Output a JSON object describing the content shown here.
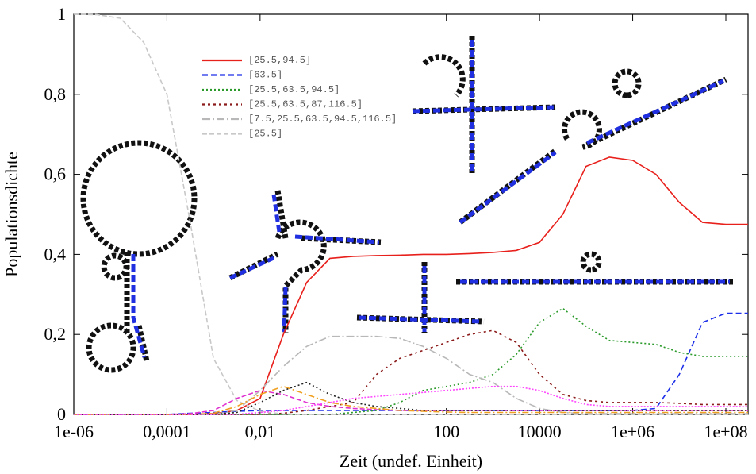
{
  "chart_data": {
    "type": "line",
    "x_label": "Zeit (undef. Einheit)",
    "y_label": "Populationsdichte",
    "x_log": true,
    "x": [
      1e-06,
      3.16e-06,
      1e-05,
      3.16e-05,
      0.0001,
      0.000316,
      0.001,
      0.00316,
      0.01,
      0.0316,
      0.1,
      0.316,
      1,
      3.16,
      10,
      31.6,
      100,
      316,
      1000,
      3160,
      10000,
      31600,
      100000,
      316000,
      1000000,
      3160000,
      10000000,
      31600000,
      100000000,
      300000000
    ],
    "xlim": [
      1e-06,
      300000000
    ],
    "xticks": [
      {
        "value": 1e-06,
        "label": "1e-06"
      },
      {
        "value": 0.0001,
        "label": "0,0001"
      },
      {
        "value": 0.01,
        "label": "0,01"
      },
      100,
      10000,
      {
        "value": 1000000,
        "label": "1e+06"
      },
      {
        "value": 100000000,
        "label": "1e+08"
      }
    ],
    "ylim": [
      0,
      1
    ],
    "yticks": [
      0,
      {
        "value": 0.2,
        "label": "0,2"
      },
      {
        "value": 0.4,
        "label": "0,4"
      },
      {
        "value": 0.6,
        "label": "0,6"
      },
      {
        "value": 0.8,
        "label": "0,8"
      },
      1
    ],
    "legend_position": "upper left",
    "series": [
      {
        "name": "[25.5,94.5]",
        "color": "#e8201c",
        "dash": "none",
        "values": [
          0,
          0,
          0,
          0,
          0,
          0,
          0.002,
          0.01,
          0.04,
          0.2,
          0.33,
          0.39,
          0.395,
          0.397,
          0.398,
          0.4,
          0.4,
          0.402,
          0.405,
          0.41,
          0.43,
          0.5,
          0.62,
          0.643,
          0.635,
          0.6,
          0.53,
          0.48,
          0.475,
          0.475
        ]
      },
      {
        "name": "[63.5]",
        "color": "#1c2ee8",
        "dash": "7,4",
        "values": [
          0,
          0,
          0,
          0,
          0,
          0.003,
          0.005,
          0.008,
          0.01,
          0.01,
          0.01,
          0.01,
          0.01,
          0.01,
          0.01,
          0.01,
          0.01,
          0.01,
          0.01,
          0.01,
          0.01,
          0.01,
          0.01,
          0.01,
          0.01,
          0.015,
          0.1,
          0.23,
          0.253,
          0.253
        ]
      },
      {
        "name": "[25.5,63.5,94.5]",
        "color": "#2a9a2a",
        "dash": "2,3",
        "values": [
          0,
          0,
          0,
          0,
          0,
          0,
          0,
          0,
          0,
          0,
          0,
          0,
          0.005,
          0.01,
          0.03,
          0.06,
          0.07,
          0.08,
          0.1,
          0.15,
          0.23,
          0.265,
          0.22,
          0.185,
          0.18,
          0.175,
          0.155,
          0.145,
          0.145,
          0.145
        ]
      },
      {
        "name": "[25.5,63.5,87,116.5]",
        "color": "#8b1a1a",
        "dash": "3,4",
        "values": [
          0,
          0,
          0,
          0,
          0,
          0,
          0,
          0,
          0,
          0.003,
          0.01,
          0.02,
          0.03,
          0.1,
          0.14,
          0.16,
          0.18,
          0.2,
          0.21,
          0.18,
          0.1,
          0.05,
          0.035,
          0.03,
          0.03,
          0.03,
          0.028,
          0.025,
          0.025,
          0.025
        ]
      },
      {
        "name": "[7.5,25.5,63.5,94.5,116.5]",
        "color": "#b8b8b8",
        "dash": "10,3,2,3",
        "values": [
          0,
          0,
          0,
          0,
          0,
          0,
          0,
          0.01,
          0.06,
          0.12,
          0.17,
          0.195,
          0.195,
          0.195,
          0.19,
          0.17,
          0.14,
          0.1,
          0.08,
          0.04,
          0.015,
          0.005,
          0.002,
          0.002,
          0.002,
          0.002,
          0.002,
          0.002,
          0.002,
          0.002
        ]
      },
      {
        "name": "[25.5]",
        "color": "#c8c8c8",
        "dash": "6,3",
        "values": [
          1,
          0.999,
          0.99,
          0.93,
          0.8,
          0.48,
          0.14,
          0.035,
          0.008,
          0.001,
          0,
          0,
          0,
          0,
          0,
          0,
          0,
          0,
          0,
          0,
          0,
          0,
          0,
          0,
          0,
          0,
          0,
          0,
          0,
          0
        ]
      },
      {
        "color": "#e030d0",
        "dash": "6,3",
        "values": [
          0,
          0,
          0,
          0,
          0,
          0.002,
          0.01,
          0.04,
          0.06,
          0.05,
          0.03,
          0.02,
          0.015,
          0.012,
          0.01,
          0.01,
          0.01,
          0.01,
          0.01,
          0.01,
          0.01,
          0.01,
          0.01,
          0.01,
          0.01,
          0.01,
          0.01,
          0.01,
          0.01,
          0.01
        ]
      },
      {
        "color": "#f0a020",
        "dash": "8,3,2,3",
        "values": [
          0,
          0,
          0,
          0,
          0,
          0,
          0.003,
          0.02,
          0.05,
          0.07,
          0.05,
          0.03,
          0.02,
          0.015,
          0.01,
          0.008,
          0.006,
          0.005,
          0.005,
          0.005,
          0.005,
          0.005,
          0.005,
          0.005,
          0.005,
          0.005,
          0.005,
          0.005,
          0.005,
          0.005
        ]
      },
      {
        "color": "#222222",
        "dash": "2,3",
        "values": [
          0,
          0,
          0,
          0,
          0,
          0,
          0,
          0.005,
          0.03,
          0.06,
          0.08,
          0.05,
          0.03,
          0.02,
          0.015,
          0.01,
          0.01,
          0.01,
          0.01,
          0.01,
          0.01,
          0.01,
          0.01,
          0.01,
          0.01,
          0.01,
          0.01,
          0.01,
          0.01,
          0.01
        ]
      },
      {
        "color": "#ff44ff",
        "dash": "2,2",
        "values": [
          0,
          0,
          0,
          0,
          0,
          0,
          0,
          0,
          0.005,
          0.01,
          0.02,
          0.03,
          0.04,
          0.045,
          0.05,
          0.055,
          0.06,
          0.065,
          0.07,
          0.07,
          0.06,
          0.04,
          0.025,
          0.02,
          0.02,
          0.02,
          0.02,
          0.02,
          0.02,
          0.02
        ]
      }
    ]
  }
}
